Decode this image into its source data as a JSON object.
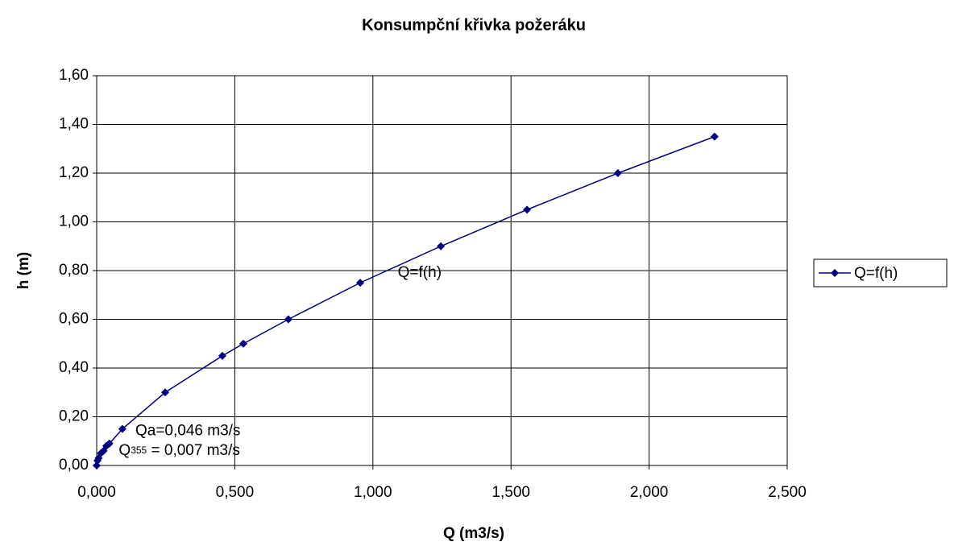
{
  "chart_data": {
    "type": "line",
    "title": "Konsumpční křivka požeráku",
    "x_label": "Q (m3/s)",
    "y_label": "h (m)",
    "series": [
      {
        "name": "Q=f(h)",
        "color": "#000080",
        "x": [
          0,
          0.003,
          0.007,
          0.015,
          0.025,
          0.035,
          0.046,
          0.093,
          0.248,
          0.455,
          0.531,
          0.694,
          0.954,
          1.246,
          1.558,
          1.887,
          2.237
        ],
        "values": [
          0,
          0.02,
          0.03,
          0.05,
          0.06,
          0.08,
          0.09,
          0.15,
          0.3,
          0.45,
          0.5,
          0.6,
          0.75,
          0.9,
          1.05,
          1.2,
          1.35
        ]
      }
    ],
    "xlim": [
      0,
      2.5
    ],
    "xticks": [
      {
        "value": 0,
        "label": "0,000"
      },
      {
        "value": 0.5,
        "label": "0,500"
      },
      {
        "value": 1,
        "label": "1,000"
      },
      {
        "value": 1.5,
        "label": "1,500"
      },
      {
        "value": 2,
        "label": "2,000"
      },
      {
        "value": 2.5,
        "label": "2,500"
      }
    ],
    "ylim": [
      0,
      1.6
    ],
    "yticks": [
      {
        "value": 0,
        "label": "0,00"
      },
      {
        "value": 0.2,
        "label": "0,20"
      },
      {
        "value": 0.4,
        "label": "0,40"
      },
      {
        "value": 0.6,
        "label": "0,60"
      },
      {
        "value": 0.8,
        "label": "0,80"
      },
      {
        "value": 1,
        "label": "1,00"
      },
      {
        "value": 1.2,
        "label": "1,20"
      },
      {
        "value": 1.4,
        "label": "1,40"
      },
      {
        "value": 1.6,
        "label": "1,60"
      }
    ],
    "grid": true,
    "legend": "right",
    "annotations": [
      {
        "text": "Q=f(h)",
        "x": 1.09,
        "y": 0.79
      },
      {
        "text": "Qa=0,046 m3/s",
        "x": 0.14,
        "y": 0.14
      },
      {
        "text": "Q",
        "sub": "355",
        "rest": " = 0,007 m3/s",
        "x": 0.08,
        "y": 0.06
      }
    ]
  }
}
